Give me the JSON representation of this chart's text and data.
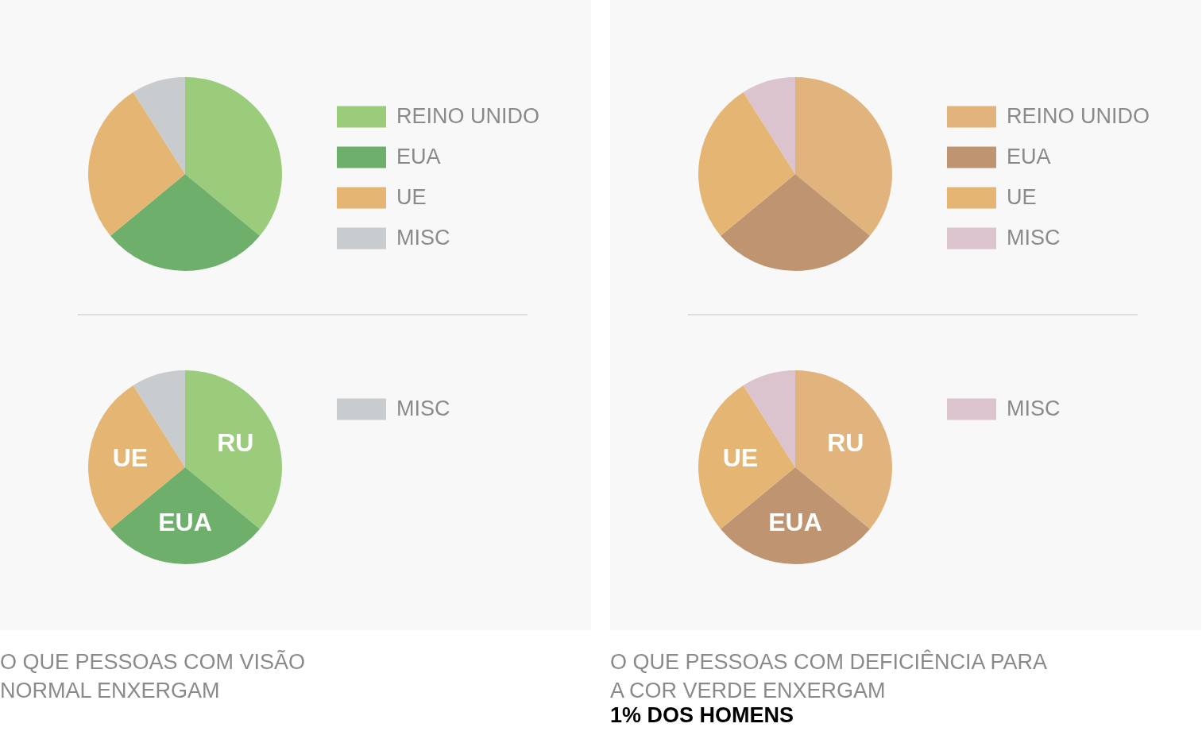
{
  "chart_data": [
    {
      "type": "pie",
      "categories": [
        "REINO UNIDO",
        "EUA",
        "UE",
        "MISC"
      ],
      "values": [
        36,
        28,
        27,
        9
      ],
      "colors": [
        "#9bcc7c",
        "#6daf6b",
        "#e5b574",
        "#c8cccf"
      ],
      "legend": "right"
    },
    {
      "type": "pie",
      "title": "O QUE PESSOAS COM VISÃO\nNORMAL ENXERGAM",
      "categories": [
        "RU",
        "EUA",
        "UE",
        "MISC"
      ],
      "values": [
        36,
        28,
        27,
        9
      ],
      "colors": [
        "#9bcc7c",
        "#6daf6b",
        "#e5b574",
        "#c8cccf"
      ],
      "legend": "right"
    },
    {
      "type": "pie",
      "categories": [
        "REINO UNIDO",
        "EUA",
        "UE",
        "MISC"
      ],
      "values": [
        36,
        28,
        27,
        9
      ],
      "colors": [
        "#e1b47d",
        "#bf9571",
        "#e5b574",
        "#dcc4cf"
      ],
      "legend": "right"
    },
    {
      "type": "pie",
      "title": "O QUE PESSOAS COM DEFICIÊNCIA PARA\nA COR VERDE ENXERGAM",
      "subtitle": "1% DOS HOMENS",
      "categories": [
        "RU",
        "EUA",
        "UE",
        "MISC"
      ],
      "values": [
        36,
        28,
        27,
        9
      ],
      "colors": [
        "#e1b47d",
        "#bf9571",
        "#e5b574",
        "#dcc4cf"
      ],
      "legend": "right"
    }
  ]
}
